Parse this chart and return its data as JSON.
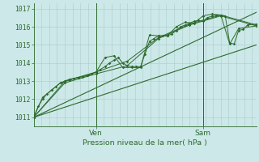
{
  "bg_color": "#cce8e8",
  "grid_color": "#aacccc",
  "line_color": "#2d6a2d",
  "ylabel_text": "Pression niveau de la mer( hPa )",
  "yticks": [
    1011,
    1012,
    1013,
    1014,
    1015,
    1016,
    1017
  ],
  "ylim": [
    1010.5,
    1017.3
  ],
  "xlim": [
    0,
    100
  ],
  "ven_x": 28,
  "sam_x": 76,
  "series1": [
    [
      0,
      1011.0
    ],
    [
      2,
      1011.6
    ],
    [
      4,
      1012.0
    ],
    [
      6,
      1012.3
    ],
    [
      8,
      1012.5
    ],
    [
      10,
      1012.7
    ],
    [
      12,
      1012.9
    ],
    [
      14,
      1013.0
    ],
    [
      16,
      1013.1
    ],
    [
      18,
      1013.15
    ],
    [
      20,
      1013.2
    ],
    [
      22,
      1013.25
    ],
    [
      24,
      1013.3
    ],
    [
      26,
      1013.4
    ],
    [
      28,
      1013.5
    ],
    [
      30,
      1013.65
    ],
    [
      32,
      1013.8
    ],
    [
      34,
      1014.0
    ],
    [
      36,
      1014.15
    ],
    [
      38,
      1014.3
    ],
    [
      40,
      1014.0
    ],
    [
      42,
      1013.85
    ],
    [
      44,
      1013.8
    ],
    [
      46,
      1013.8
    ],
    [
      48,
      1013.8
    ],
    [
      50,
      1014.5
    ],
    [
      52,
      1015.2
    ],
    [
      54,
      1015.35
    ],
    [
      56,
      1015.5
    ],
    [
      58,
      1015.5
    ],
    [
      60,
      1015.5
    ],
    [
      62,
      1015.6
    ],
    [
      64,
      1015.8
    ],
    [
      66,
      1016.0
    ],
    [
      68,
      1016.1
    ],
    [
      70,
      1016.2
    ],
    [
      72,
      1016.3
    ],
    [
      74,
      1016.35
    ],
    [
      76,
      1016.3
    ],
    [
      78,
      1016.5
    ],
    [
      80,
      1016.6
    ],
    [
      82,
      1016.65
    ],
    [
      84,
      1016.65
    ],
    [
      86,
      1016.6
    ],
    [
      88,
      1015.1
    ],
    [
      90,
      1015.05
    ],
    [
      92,
      1015.8
    ],
    [
      94,
      1015.85
    ],
    [
      96,
      1016.1
    ],
    [
      100,
      1016.15
    ]
  ],
  "series2": [
    [
      0,
      1011.0
    ],
    [
      4,
      1012.1
    ],
    [
      8,
      1012.5
    ],
    [
      12,
      1012.9
    ],
    [
      16,
      1013.05
    ],
    [
      20,
      1013.2
    ],
    [
      24,
      1013.3
    ],
    [
      28,
      1013.5
    ],
    [
      32,
      1014.3
    ],
    [
      36,
      1014.4
    ],
    [
      40,
      1013.75
    ],
    [
      44,
      1013.75
    ],
    [
      48,
      1013.75
    ],
    [
      52,
      1015.55
    ],
    [
      56,
      1015.5
    ],
    [
      60,
      1015.5
    ],
    [
      64,
      1016.0
    ],
    [
      68,
      1016.25
    ],
    [
      72,
      1016.2
    ],
    [
      76,
      1016.6
    ],
    [
      80,
      1016.7
    ],
    [
      84,
      1016.65
    ],
    [
      88,
      1015.05
    ],
    [
      92,
      1015.9
    ],
    [
      100,
      1016.05
    ]
  ],
  "series3": [
    [
      0,
      1011.0
    ],
    [
      14,
      1013.0
    ],
    [
      28,
      1013.5
    ],
    [
      42,
      1014.1
    ],
    [
      56,
      1015.4
    ],
    [
      70,
      1016.15
    ],
    [
      84,
      1016.65
    ],
    [
      100,
      1016.1
    ]
  ],
  "series4": [
    [
      0,
      1011.0
    ],
    [
      14,
      1012.9
    ],
    [
      28,
      1013.4
    ],
    [
      42,
      1013.85
    ],
    [
      56,
      1015.35
    ],
    [
      70,
      1016.1
    ],
    [
      84,
      1016.6
    ],
    [
      100,
      1016.05
    ]
  ],
  "line_upper": [
    [
      0,
      1011.0
    ],
    [
      100,
      1016.8
    ]
  ],
  "line_lower": [
    [
      0,
      1011.0
    ],
    [
      100,
      1015.0
    ]
  ]
}
